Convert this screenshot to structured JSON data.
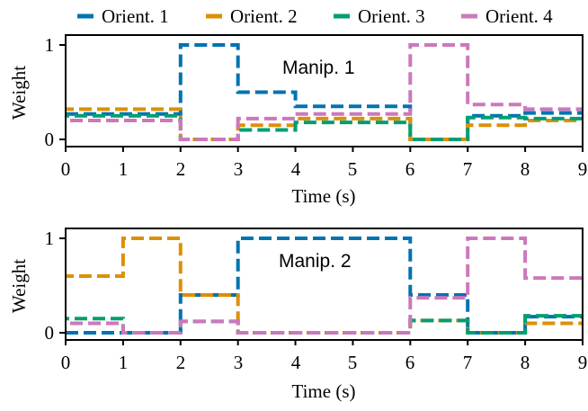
{
  "chart_data": [
    {
      "type": "line",
      "line_style": "dashed step",
      "annotation": "Manip. 1",
      "xlabel": "Time (s)",
      "ylabel": "Weight",
      "xlim": [
        0,
        9
      ],
      "ylim": [
        0,
        1
      ],
      "xticks": [
        "0",
        "1",
        "2",
        "3",
        "4",
        "5",
        "6",
        "7",
        "8",
        "9"
      ],
      "yticks": [
        "0",
        "1"
      ],
      "grid": false,
      "series": [
        {
          "name": "Orient. 1",
          "color": "#0173b2",
          "x": [
            0,
            2,
            2,
            3,
            3,
            4,
            4,
            6,
            6,
            7,
            7,
            8,
            8,
            9
          ],
          "y": [
            0.27,
            0.27,
            1.0,
            1.0,
            0.5,
            0.5,
            0.35,
            0.35,
            0.0,
            0.0,
            0.25,
            0.25,
            0.28,
            0.28
          ]
        },
        {
          "name": "Orient. 2",
          "color": "#de8f05",
          "x": [
            0,
            2,
            2,
            3,
            3,
            4,
            4,
            6,
            6,
            7,
            7,
            8,
            8,
            9
          ],
          "y": [
            0.32,
            0.32,
            0.0,
            0.0,
            0.15,
            0.15,
            0.22,
            0.22,
            0.0,
            0.0,
            0.15,
            0.15,
            0.2,
            0.2
          ]
        },
        {
          "name": "Orient. 3",
          "color": "#029e73",
          "x": [
            0,
            2,
            2,
            3,
            3,
            4,
            4,
            6,
            6,
            7,
            7,
            8,
            8,
            9
          ],
          "y": [
            0.25,
            0.25,
            0.0,
            0.0,
            0.1,
            0.1,
            0.18,
            0.18,
            0.0,
            0.0,
            0.23,
            0.23,
            0.22,
            0.22
          ]
        },
        {
          "name": "Orient. 4",
          "color": "#cc78bc",
          "x": [
            0,
            2,
            2,
            3,
            3,
            4,
            4,
            6,
            6,
            7,
            7,
            8,
            8,
            9
          ],
          "y": [
            0.2,
            0.2,
            0.0,
            0.0,
            0.22,
            0.22,
            0.27,
            0.27,
            1.0,
            1.0,
            0.37,
            0.37,
            0.32,
            0.32
          ]
        }
      ]
    },
    {
      "type": "line",
      "line_style": "dashed step",
      "annotation": "Manip. 2",
      "xlabel": "Time (s)",
      "ylabel": "Weight",
      "xlim": [
        0,
        9
      ],
      "ylim": [
        0,
        1
      ],
      "xticks": [
        "0",
        "1",
        "2",
        "3",
        "4",
        "5",
        "6",
        "7",
        "8",
        "9"
      ],
      "yticks": [
        "0",
        "1"
      ],
      "grid": false,
      "series": [
        {
          "name": "Orient. 1",
          "color": "#0173b2",
          "x": [
            0,
            1,
            1,
            2,
            2,
            3,
            3,
            6,
            6,
            7,
            7,
            8,
            8,
            9
          ],
          "y": [
            0.0,
            0.0,
            0.0,
            0.0,
            0.4,
            0.4,
            1.0,
            1.0,
            0.4,
            0.4,
            0.0,
            0.0,
            0.17,
            0.17
          ]
        },
        {
          "name": "Orient. 2",
          "color": "#de8f05",
          "x": [
            0,
            1,
            1,
            2,
            2,
            3,
            3,
            6,
            6,
            7,
            7,
            8,
            8,
            9
          ],
          "y": [
            0.6,
            0.6,
            1.0,
            1.0,
            0.4,
            0.4,
            0.0,
            0.0,
            0.13,
            0.13,
            0.0,
            0.0,
            0.1,
            0.1
          ]
        },
        {
          "name": "Orient. 3",
          "color": "#029e73",
          "x": [
            0,
            1,
            1,
            2,
            2,
            3,
            3,
            6,
            6,
            7,
            7,
            8,
            8,
            9
          ],
          "y": [
            0.15,
            0.15,
            0.0,
            0.0,
            0.12,
            0.12,
            0.0,
            0.0,
            0.13,
            0.13,
            0.0,
            0.0,
            0.18,
            0.18
          ]
        },
        {
          "name": "Orient. 4",
          "color": "#cc78bc",
          "x": [
            0,
            1,
            1,
            2,
            2,
            3,
            3,
            6,
            6,
            7,
            7,
            8,
            8,
            9
          ],
          "y": [
            0.1,
            0.1,
            0.0,
            0.0,
            0.12,
            0.12,
            0.0,
            0.0,
            0.37,
            0.37,
            1.0,
            1.0,
            0.58,
            0.58
          ]
        }
      ]
    }
  ],
  "legend": {
    "placement": "top",
    "entries": [
      {
        "label": "Orient. 1",
        "color": "#0173b2"
      },
      {
        "label": "Orient. 2",
        "color": "#de8f05"
      },
      {
        "label": "Orient. 3",
        "color": "#029e73"
      },
      {
        "label": "Orient. 4",
        "color": "#cc78bc"
      }
    ]
  }
}
